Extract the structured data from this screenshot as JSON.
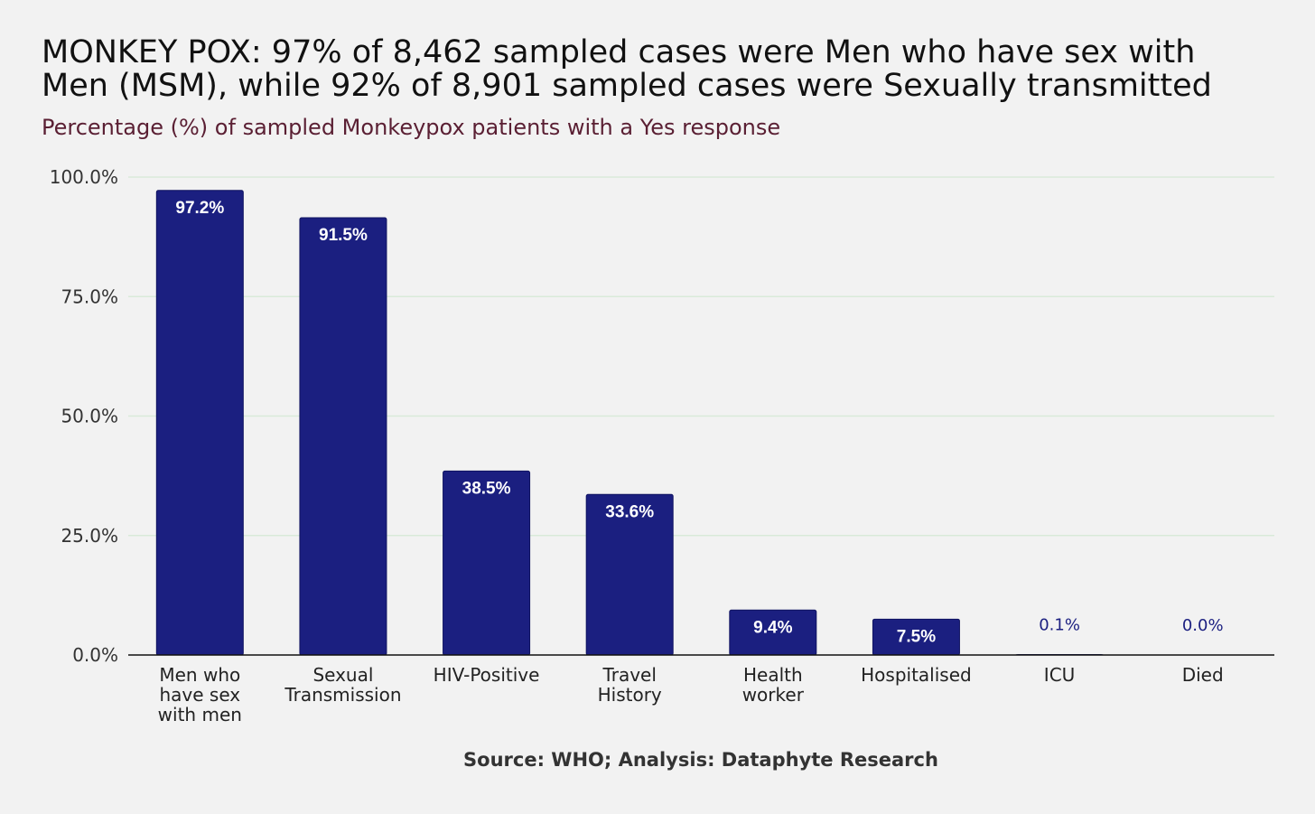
{
  "chart_data": {
    "type": "bar",
    "title_lines": [
      "MONKEY POX: 97% of 8,462 sampled cases were Men who have sex with",
      "Men (MSM), while 92% of 8,901 sampled cases were Sexually transmitted"
    ],
    "subtitle": "Percentage (%) of sampled Monkeypox patients with a Yes response",
    "categories": [
      [
        "Men who",
        "have sex",
        "with men"
      ],
      [
        "Sexual",
        "Transmission"
      ],
      [
        "HIV-Positive"
      ],
      [
        "Travel",
        "History"
      ],
      [
        "Health",
        "worker"
      ],
      [
        "Hospitalised"
      ],
      [
        "ICU"
      ],
      [
        "Died"
      ]
    ],
    "values": [
      97.2,
      91.5,
      38.5,
      33.6,
      9.4,
      7.5,
      0.1,
      0.0
    ],
    "data_labels": [
      "97.2%",
      "91.5%",
      "38.5%",
      "33.6%",
      "9.4%",
      "7.5%",
      "0.1%",
      "0.0%"
    ],
    "y_ticks": [
      0,
      25,
      50,
      75,
      100
    ],
    "y_tick_labels": [
      "0.0%",
      "25.0%",
      "50.0%",
      "75.0%",
      "100.0%"
    ],
    "ylim": [
      0,
      100
    ],
    "xlabel": "",
    "ylabel": "",
    "grid": true,
    "bar_color": "#1b1f80",
    "grid_color": "#d9ead9",
    "source": "Source: WHO; Analysis: Dataphyte Research"
  }
}
